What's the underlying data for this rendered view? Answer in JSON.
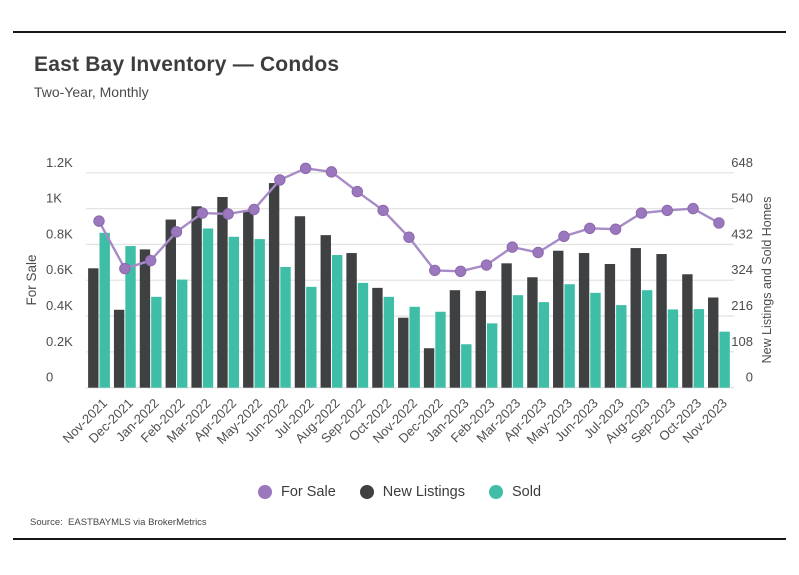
{
  "header": {
    "title": "East Bay Inventory — Condos",
    "subtitle": "Two-Year, Monthly"
  },
  "source": {
    "text": "Source:  EASTBAYMLS via BrokerMetrics"
  },
  "legend": [
    {
      "label": "For Sale",
      "color": "#9b78bd"
    },
    {
      "label": "New Listings",
      "color": "#3f4042"
    },
    {
      "label": "Sold",
      "color": "#3ebda7"
    }
  ],
  "chart_data": {
    "type": "bar+line",
    "title": "East Bay Inventory — Condos",
    "subtitle": "Two-Year, Monthly",
    "grid": true,
    "legend_position": "bottom",
    "categories": [
      "Nov-2021",
      "Dec-2021",
      "Jan-2022",
      "Feb-2022",
      "Mar-2022",
      "Apr-2022",
      "May-2022",
      "Jun-2022",
      "Jul-2022",
      "Aug-2022",
      "Sep-2022",
      "Oct-2022",
      "Nov-2022",
      "Dec-2022",
      "Jan-2023",
      "Feb-2023",
      "Mar-2023",
      "Apr-2023",
      "May-2023",
      "Jun-2023",
      "Jul-2023",
      "Aug-2023",
      "Sep-2023",
      "Oct-2023",
      "Nov-2023"
    ],
    "series": [
      {
        "name": "For Sale",
        "type": "line",
        "axis": "left",
        "color": "#a78bc7",
        "point_color": "#9b78bd",
        "point_stroke": "#8d68ae",
        "values": [
          930,
          665,
          710,
          870,
          975,
          970,
          995,
          1160,
          1225,
          1205,
          1095,
          990,
          840,
          655,
          650,
          685,
          785,
          755,
          845,
          890,
          885,
          975,
          990,
          1000,
          920
        ]
      },
      {
        "name": "New Listings",
        "type": "bar",
        "axis": "right",
        "color": "#3f4042",
        "values": [
          360,
          235,
          417,
          507,
          547,
          575,
          535,
          617,
          517,
          460,
          406,
          301,
          211,
          119,
          294,
          292,
          375,
          333,
          413,
          406,
          373,
          421,
          403,
          342,
          272
        ]
      },
      {
        "name": "Sold",
        "type": "bar",
        "axis": "right",
        "color": "#3ebda7",
        "values": [
          467,
          427,
          274,
          326,
          480,
          455,
          448,
          364,
          304,
          400,
          316,
          274,
          244,
          229,
          131,
          194,
          279,
          258,
          312,
          286,
          249,
          294,
          236,
          237,
          169
        ]
      }
    ],
    "left_axis": {
      "label": "For Sale",
      "ticks": [
        "0",
        "0.2K",
        "0.4K",
        "0.6K",
        "0.8K",
        "1K",
        "1.2K"
      ],
      "tick_values": [
        0,
        200,
        400,
        600,
        800,
        1000,
        1200
      ],
      "max": 1280
    },
    "right_axis": {
      "label": "New Listings and Sold Homes",
      "ticks": [
        "0",
        "108",
        "216",
        "324",
        "432",
        "540",
        "648"
      ],
      "tick_values": [
        0,
        108,
        216,
        324,
        432,
        540,
        648
      ],
      "max": 691
    },
    "colors": {
      "grid": "#e4e4e4",
      "axis_text": "#4c4c4c",
      "x_label_text": "#4f4f4f"
    }
  }
}
